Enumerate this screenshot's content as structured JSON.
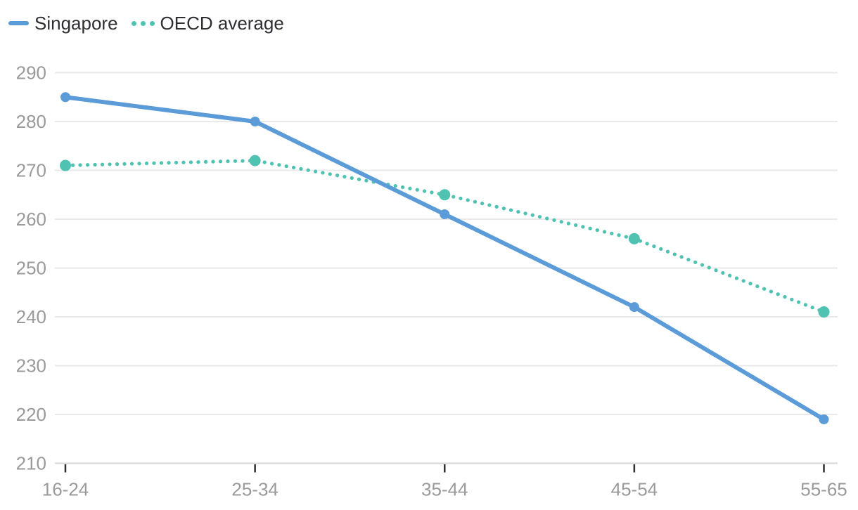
{
  "chart_data": {
    "type": "line",
    "title": "",
    "xlabel": "",
    "ylabel": "",
    "categories": [
      "16-24",
      "25-34",
      "35-44",
      "45-54",
      "55-65"
    ],
    "series": [
      {
        "name": "Singapore",
        "color": "#5b9bd8",
        "line_style": "solid",
        "marker": "circle",
        "values": [
          285,
          280,
          261,
          242,
          219
        ]
      },
      {
        "name": "OECD average",
        "color": "#4fc2b2",
        "line_style": "dotted",
        "marker": "circle",
        "values": [
          271,
          272,
          265,
          256,
          241
        ]
      }
    ],
    "ylim": [
      210,
      290
    ],
    "yticks": [
      290,
      280,
      270,
      260,
      250,
      240,
      230,
      220,
      210
    ],
    "grid": true,
    "legend_position": "top-left"
  },
  "colors": {
    "background": "#ffffff",
    "gridline": "#e9e9e9",
    "axis_line": "#d6d6d6",
    "axis_label": "#9a9a9a",
    "tick_mark": "#2f2f2f",
    "legend_text": "#2e2e33"
  }
}
